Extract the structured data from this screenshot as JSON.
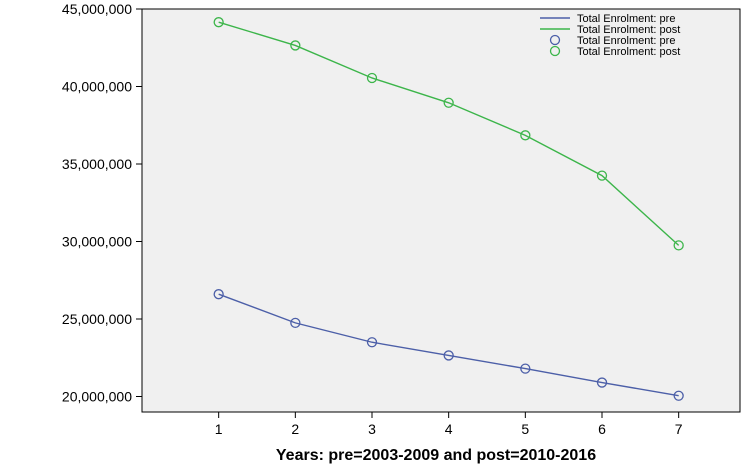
{
  "chart_data": {
    "type": "line",
    "title": "",
    "xlabel": "Years: pre=2003-2009 and post=2010-2016",
    "ylabel": "",
    "x": [
      1,
      2,
      3,
      4,
      5,
      6,
      7
    ],
    "xlim": [
      0,
      7.8
    ],
    "ylim": [
      19000000,
      45000000
    ],
    "yticks": [
      20000000,
      25000000,
      30000000,
      35000000,
      40000000,
      45000000
    ],
    "ytick_labels": [
      "20,000,000",
      "25,000,000",
      "30,000,000",
      "35,000,000",
      "40,000,000",
      "45,000,000"
    ],
    "xtick_labels": [
      "1",
      "2",
      "3",
      "4",
      "5",
      "6",
      "7"
    ],
    "grid": false,
    "legend_position": "top-right",
    "legend": [
      {
        "label": "Total Enrolment: pre",
        "kind": "line",
        "color": "#4c5fa8"
      },
      {
        "label": "Total Enrolment: post",
        "kind": "line",
        "color": "#3cb54a"
      },
      {
        "label": "Total Enrolment: pre",
        "kind": "marker",
        "color": "#4c5fa8"
      },
      {
        "label": "Total Enrolment: post",
        "kind": "marker",
        "color": "#3cb54a"
      }
    ],
    "series": [
      {
        "name": "Total Enrolment: pre",
        "color": "#4c5fa8",
        "values": [
          26600000,
          24750000,
          23500000,
          22650000,
          21800000,
          20900000,
          20050000
        ]
      },
      {
        "name": "Total Enrolment: post",
        "color": "#3cb54a",
        "values": [
          44150000,
          42650000,
          40550000,
          38950000,
          36850000,
          34250000,
          29750000
        ]
      }
    ],
    "plot_background": "#f0f0f0"
  }
}
